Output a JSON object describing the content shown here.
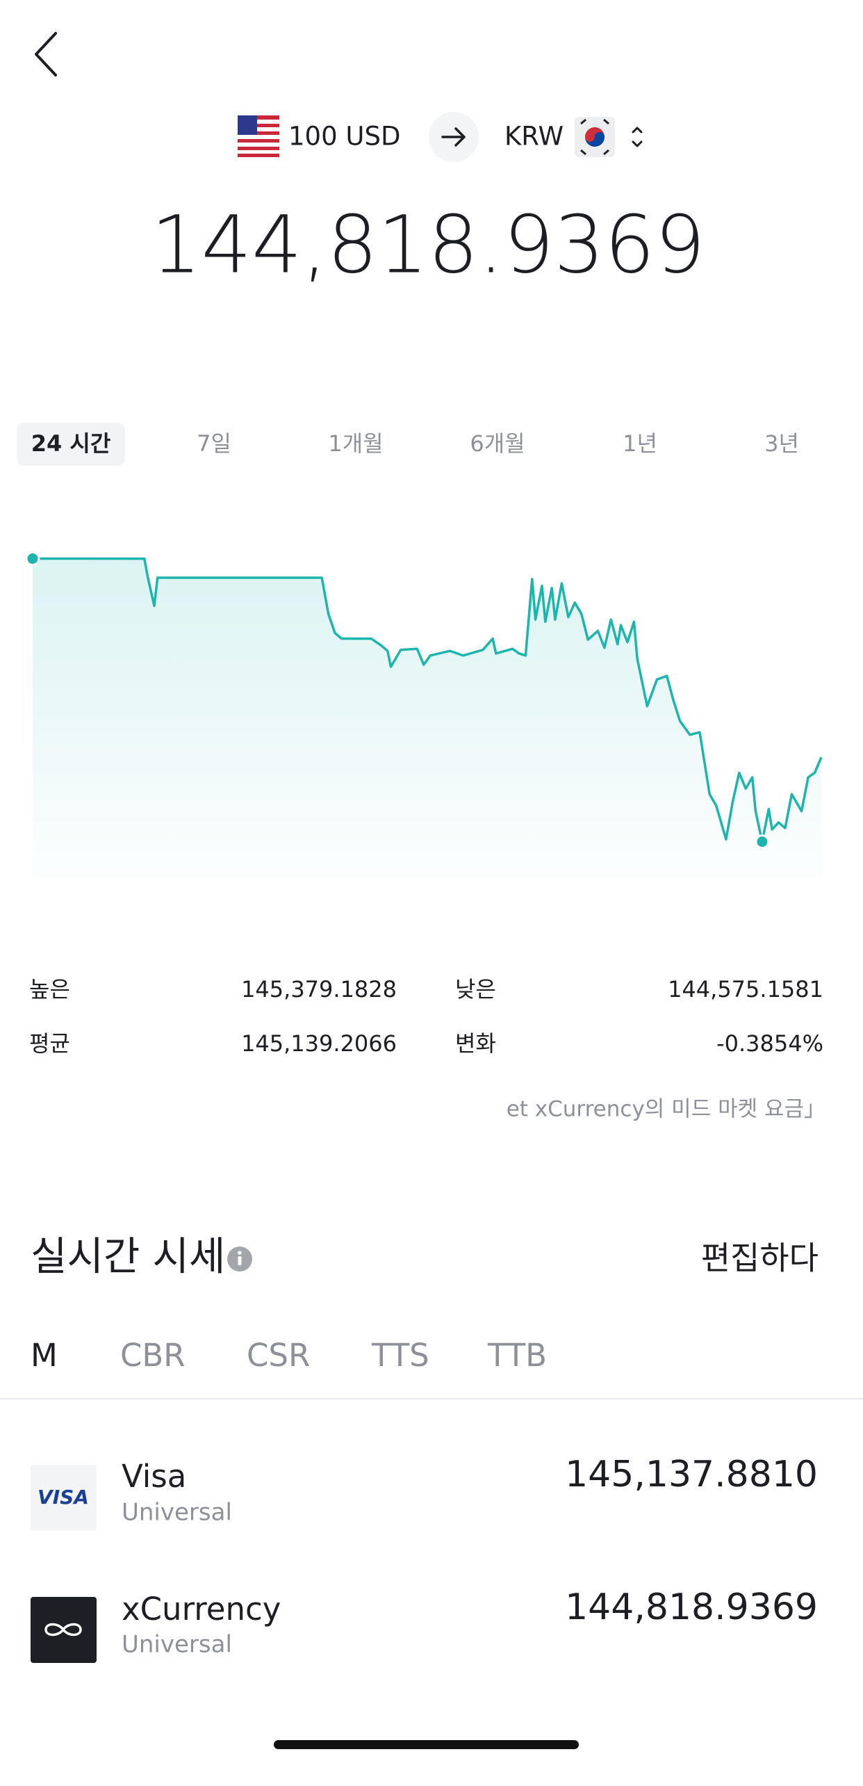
{
  "header": {
    "from_amount": "100 USD",
    "to_currency": "KRW"
  },
  "converted": "144,818.9369",
  "tabs": [
    "24 시간",
    "7일",
    "1개월",
    "6개월",
    "1년",
    "3년"
  ],
  "chart_data": {
    "type": "line",
    "x": [
      0,
      3.4,
      3.5,
      3.7,
      3.8,
      8.8,
      9.0,
      9.2,
      9.4,
      10.3,
      10.6,
      10.8,
      10.9,
      11.2,
      11.7,
      11.9,
      12.1,
      12.7,
      13.1,
      13.7,
      14.0,
      14.1,
      14.6,
      14.8,
      15.0,
      15.2,
      15.3,
      15.5,
      15.6,
      15.8,
      15.9,
      16.1,
      16.3,
      16.5,
      16.7,
      16.9,
      17.2,
      17.4,
      17.6,
      17.8,
      17.9,
      18.1,
      18.3,
      18.4,
      18.7,
      19.0,
      19.3,
      19.5,
      19.7,
      20.0,
      20.3,
      20.6,
      20.8,
      21.1,
      21.3,
      21.5,
      21.7,
      21.9,
      22.0,
      22.2,
      22.4,
      22.5,
      22.7,
      22.9,
      23.1,
      23.4,
      23.6,
      23.8,
      24.0
    ],
    "series": [
      {
        "color": "#1cb5ad",
        "values": [
          145379.1828,
          145379,
          145328,
          145245,
          145325,
          145325,
          145222,
          145168,
          145152,
          145152,
          145133,
          145117,
          145072,
          145120,
          145123,
          145078,
          145104,
          145117,
          145104,
          145120,
          145152,
          145110,
          145123,
          145110,
          145104,
          145321,
          145206,
          145302,
          145200,
          145296,
          145206,
          145309,
          145213,
          145254,
          145222,
          145149,
          145174,
          145126,
          145206,
          145136,
          145190,
          145142,
          145200,
          145094,
          144960,
          145036,
          145046,
          144976,
          144918,
          144879,
          144886,
          144710,
          144678,
          144582,
          144687,
          144771,
          144726,
          144758,
          144662,
          144575.1581,
          144668,
          144610,
          144630,
          144614,
          144710,
          144662,
          144758,
          144771,
          144815
        ]
      }
    ],
    "xlim": [
      0,
      24
    ],
    "ylim": [
      144470,
      145398
    ]
  },
  "stats": [
    {
      "label": "높은",
      "value": "145,379.1828"
    },
    {
      "label": "낮은",
      "value": "144,575.1581"
    },
    {
      "label": "평균",
      "value": "145,139.2066"
    },
    {
      "label": "변화",
      "value": "-0.3854%"
    }
  ],
  "note": "et xCurrency의 미드 마켓 요금」",
  "realtime": {
    "title": "실시간 시세",
    "edit": "편집하다",
    "tabs": [
      "M",
      "CBR",
      "CSR",
      "TTS",
      "TTB"
    ],
    "providers": [
      {
        "logo": "VISA",
        "name": "Visa",
        "sub": "Universal",
        "rate": "145,137.8810"
      },
      {
        "name": "xCurrency",
        "sub": "Universal",
        "rate": "144,818.9369"
      }
    ]
  }
}
